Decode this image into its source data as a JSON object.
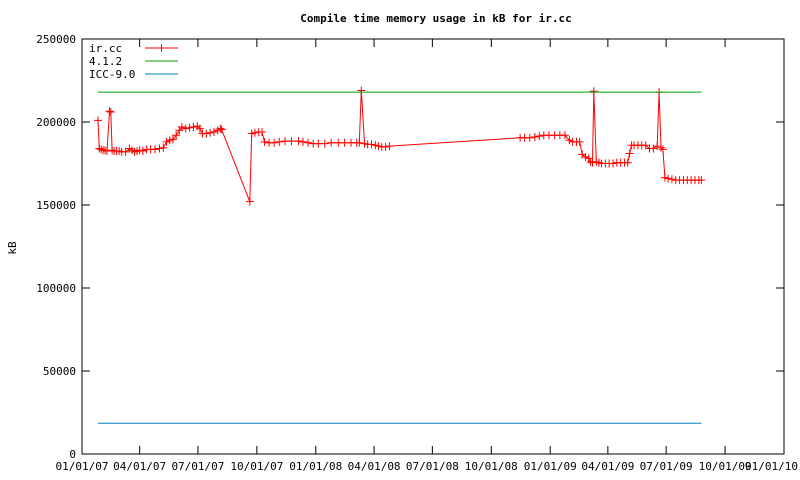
{
  "chart_data": {
    "type": "line",
    "title": "Compile time memory usage in kB for ir.cc",
    "xlabel": "",
    "ylabel": "kB",
    "xlim": [
      "01/01/07",
      "01/01/10"
    ],
    "ylim": [
      0,
      250000
    ],
    "x_ticks": [
      "01/01/07",
      "04/01/07",
      "07/01/07",
      "10/01/07",
      "01/01/08",
      "04/01/08",
      "07/01/08",
      "10/01/08",
      "01/01/09",
      "04/01/09",
      "07/01/09",
      "10/01/09",
      "01/01/10"
    ],
    "y_ticks": [
      "0",
      "50000",
      "100000",
      "150000",
      "200000",
      "250000"
    ],
    "legend_position": "top-left",
    "grid": false,
    "series": [
      {
        "name": "ir.cc",
        "color": "#ff0000",
        "marker": "plus",
        "points": [
          [
            "01/26/07",
            201000
          ],
          [
            "01/28/07",
            184000
          ],
          [
            "01/31/07",
            183500
          ],
          [
            "02/03/07",
            183000
          ],
          [
            "02/06/07",
            183000
          ],
          [
            "02/09/07",
            182500
          ],
          [
            "02/13/07",
            206500
          ],
          [
            "02/15/07",
            206000
          ],
          [
            "02/17/07",
            183000
          ],
          [
            "02/20/07",
            182500
          ],
          [
            "02/24/07",
            182500
          ],
          [
            "02/28/07",
            182500
          ],
          [
            "03/04/07",
            182000
          ],
          [
            "03/10/07",
            182000
          ],
          [
            "03/16/07",
            184000
          ],
          [
            "03/20/07",
            183000
          ],
          [
            "03/24/07",
            182000
          ],
          [
            "03/28/07",
            182500
          ],
          [
            "04/01/07",
            183000
          ],
          [
            "04/06/07",
            182500
          ],
          [
            "04/12/07",
            183500
          ],
          [
            "04/18/07",
            183500
          ],
          [
            "04/25/07",
            183500
          ],
          [
            "05/02/07",
            184000
          ],
          [
            "05/08/07",
            184500
          ],
          [
            "05/13/07",
            188000
          ],
          [
            "05/18/07",
            189000
          ],
          [
            "05/23/07",
            189500
          ],
          [
            "05/28/07",
            192000
          ],
          [
            "06/02/07",
            195000
          ],
          [
            "06/06/07",
            197000
          ],
          [
            "06/12/07",
            196000
          ],
          [
            "06/18/07",
            196500
          ],
          [
            "06/24/07",
            197000
          ],
          [
            "06/30/07",
            197500
          ],
          [
            "07/04/07",
            196000
          ],
          [
            "07/08/07",
            193000
          ],
          [
            "07/14/07",
            193000
          ],
          [
            "07/20/07",
            193500
          ],
          [
            "07/26/07",
            194000
          ],
          [
            "08/01/07",
            195000
          ],
          [
            "08/05/07",
            196000
          ],
          [
            "08/07/07",
            195500
          ],
          [
            "09/20/07",
            152000
          ],
          [
            "09/23/07",
            193000
          ],
          [
            "09/28/07",
            193500
          ],
          [
            "10/04/07",
            194000
          ],
          [
            "10/09/07",
            194000
          ],
          [
            "10/13/07",
            188000
          ],
          [
            "10/20/07",
            187500
          ],
          [
            "10/28/07",
            187500
          ],
          [
            "11/05/07",
            188000
          ],
          [
            "11/14/07",
            188500
          ],
          [
            "11/24/07",
            188500
          ],
          [
            "12/05/07",
            188500
          ],
          [
            "12/12/07",
            188000
          ],
          [
            "12/20/07",
            187500
          ],
          [
            "12/28/07",
            187000
          ],
          [
            "01/05/08",
            187000
          ],
          [
            "01/15/08",
            187000
          ],
          [
            "01/25/08",
            187500
          ],
          [
            "02/05/08",
            187500
          ],
          [
            "02/15/08",
            187500
          ],
          [
            "02/25/08",
            187500
          ],
          [
            "03/05/08",
            187500
          ],
          [
            "03/09/08",
            187500
          ],
          [
            "03/12/08",
            219000
          ],
          [
            "03/17/08",
            187000
          ],
          [
            "03/22/08",
            186500
          ],
          [
            "03/28/08",
            186500
          ],
          [
            "04/03/08",
            186000
          ],
          [
            "04/08/08",
            185500
          ],
          [
            "04/13/08",
            185000
          ],
          [
            "04/19/08",
            185000
          ],
          [
            "04/25/08",
            185500
          ],
          [
            "11/15/08",
            190500
          ],
          [
            "11/22/08",
            190500
          ],
          [
            "11/30/08",
            190500
          ],
          [
            "12/08/08",
            191000
          ],
          [
            "12/15/08",
            191500
          ],
          [
            "12/22/08",
            192000
          ],
          [
            "12/30/08",
            192000
          ],
          [
            "01/08/09",
            192000
          ],
          [
            "01/16/09",
            192000
          ],
          [
            "01/24/09",
            192000
          ],
          [
            "01/31/09",
            189000
          ],
          [
            "02/05/09",
            188000
          ],
          [
            "02/11/09",
            188000
          ],
          [
            "02/16/09",
            188000
          ],
          [
            "02/20/09",
            180500
          ],
          [
            "02/25/09",
            179000
          ],
          [
            "03/02/09",
            178000
          ],
          [
            "03/05/09",
            176000
          ],
          [
            "03/08/09",
            175500
          ],
          [
            "03/10/09",
            218500
          ],
          [
            "03/14/09",
            176000
          ],
          [
            "03/18/09",
            175500
          ],
          [
            "03/22/09",
            175000
          ],
          [
            "03/28/09",
            175000
          ],
          [
            "04/03/09",
            175000
          ],
          [
            "04/09/09",
            175000
          ],
          [
            "04/15/09",
            175500
          ],
          [
            "04/21/09",
            175500
          ],
          [
            "04/27/09",
            175500
          ],
          [
            "05/02/09",
            175500
          ],
          [
            "05/05/09",
            181000
          ],
          [
            "05/08/09",
            186000
          ],
          [
            "05/12/09",
            186000
          ],
          [
            "05/18/09",
            186000
          ],
          [
            "05/24/09",
            186000
          ],
          [
            "05/30/09",
            186000
          ],
          [
            "06/05/09",
            184000
          ],
          [
            "06/11/09",
            184000
          ],
          [
            "06/17/09",
            185500
          ],
          [
            "06/20/09",
            218000
          ],
          [
            "06/23/09",
            184500
          ],
          [
            "06/26/09",
            183500
          ],
          [
            "06/29/09",
            166500
          ],
          [
            "07/04/09",
            166000
          ],
          [
            "07/10/09",
            165500
          ],
          [
            "07/16/09",
            165000
          ],
          [
            "07/22/09",
            165000
          ],
          [
            "07/28/09",
            165000
          ],
          [
            "08/03/09",
            165000
          ],
          [
            "08/09/09",
            165000
          ],
          [
            "08/15/09",
            165000
          ],
          [
            "08/21/09",
            165000
          ],
          [
            "08/25/09",
            165000
          ]
        ]
      },
      {
        "name": "4.1.2",
        "color": "#00a000",
        "marker": "none",
        "points": [
          [
            "01/26/07",
            218000
          ],
          [
            "08/25/09",
            218000
          ]
        ]
      },
      {
        "name": "ICC-9.0",
        "color": "#0080c0",
        "marker": "none",
        "points": [
          [
            "01/26/07",
            18500
          ],
          [
            "08/25/09",
            18500
          ]
        ]
      }
    ]
  }
}
